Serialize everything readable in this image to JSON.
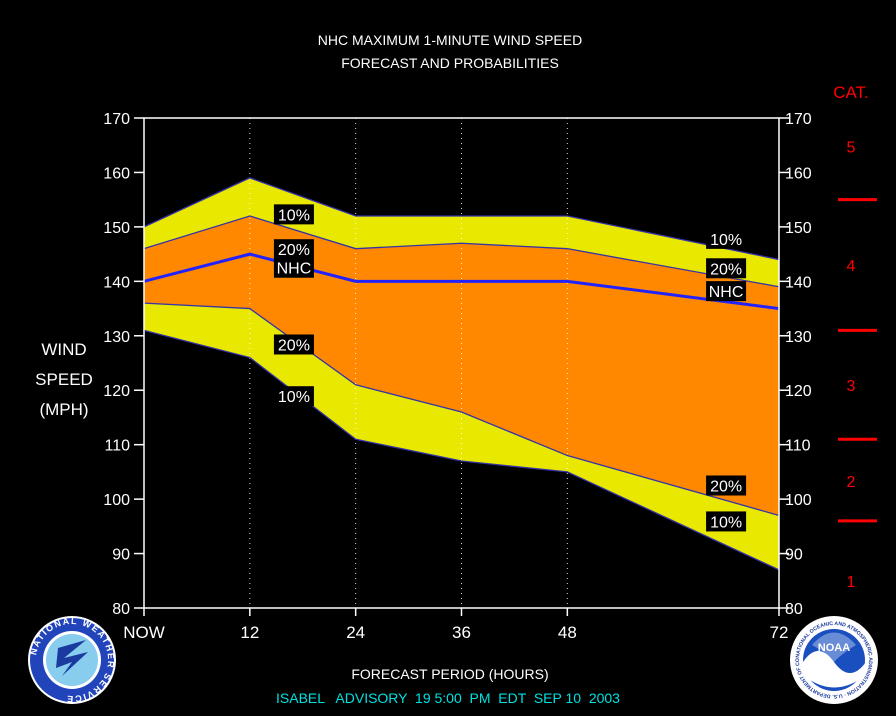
{
  "chart_data": {
    "type": "area",
    "title": "NHC MAXIMUM 1-MINUTE WIND SPEED",
    "subtitle": "FORECAST AND PROBABILITIES",
    "xlabel": "FORECAST PERIOD (HOURS)",
    "ylabel_lines": [
      "WIND",
      "SPEED",
      "(MPH)"
    ],
    "xlim": [
      0,
      72
    ],
    "ylim": [
      80,
      170
    ],
    "x_ticks": [
      {
        "x": 0,
        "label": "NOW"
      },
      {
        "x": 12,
        "label": "12"
      },
      {
        "x": 24,
        "label": "24"
      },
      {
        "x": 36,
        "label": "36"
      },
      {
        "x": 48,
        "label": "48"
      },
      {
        "x": 72,
        "label": "72"
      }
    ],
    "y_ticks": [
      80,
      90,
      100,
      110,
      120,
      130,
      140,
      150,
      160,
      170
    ],
    "x": [
      0,
      12,
      24,
      36,
      48,
      72
    ],
    "series": [
      {
        "name": "10%",
        "values": [
          150,
          159,
          152,
          152,
          152,
          144
        ]
      },
      {
        "name": "20%",
        "values": [
          146,
          152,
          146,
          147,
          146,
          139
        ]
      },
      {
        "name": "NHC",
        "values": [
          140,
          145,
          140,
          140,
          140,
          135
        ]
      },
      {
        "name": "20%",
        "values": [
          136,
          135,
          121,
          116,
          108,
          97
        ]
      },
      {
        "name": "10%",
        "values": [
          131,
          126,
          111,
          107,
          105,
          87
        ]
      }
    ],
    "band_colors": {
      "outer": "#e8e800",
      "inner": "#ff8800",
      "nhc_line": "#2222ff",
      "edge": "#3333aa"
    },
    "labels": [
      {
        "text": "10%",
        "x": 17,
        "y": 152.3
      },
      {
        "text": "20%",
        "x": 17,
        "y": 145.9
      },
      {
        "text": "NHC",
        "x": 17,
        "y": 142.5
      },
      {
        "text": "20%",
        "x": 17,
        "y": 128.4
      },
      {
        "text": "10%",
        "x": 17,
        "y": 118.9
      },
      {
        "text": "10%",
        "x": 66,
        "y": 147.8
      },
      {
        "text": "20%",
        "x": 66,
        "y": 142.4
      },
      {
        "text": "NHC",
        "x": 66,
        "y": 138.2
      },
      {
        "text": "20%",
        "x": 66,
        "y": 102.5
      },
      {
        "text": "10%",
        "x": 66,
        "y": 95.9
      }
    ],
    "category_scale": {
      "title": "CAT.",
      "color": "#ff0000",
      "boundaries": [
        96,
        111,
        131,
        155
      ],
      "categories": [
        {
          "label": "1",
          "y": 85
        },
        {
          "label": "2",
          "y": 103.3
        },
        {
          "label": "3",
          "y": 121
        },
        {
          "label": "4",
          "y": 143
        },
        {
          "label": "5",
          "y": 164.8
        }
      ]
    },
    "grid": "vertical-dotted"
  },
  "advisory": "ISABEL   ADVISORY  19 5:00  PM  EDT  SEP 10  2003",
  "advisory_color": "#00e0e0",
  "logos": {
    "left": {
      "name": "nws-logo",
      "text": "NATIONAL WEATHER SERVICE"
    },
    "right": {
      "name": "noaa-logo",
      "text": "NOAA",
      "ring_text": "NATIONAL OCEANIC AND ATMOSPHERIC ADMINISTRATION · U.S. DEPARTMENT OF COMMERCE"
    }
  }
}
